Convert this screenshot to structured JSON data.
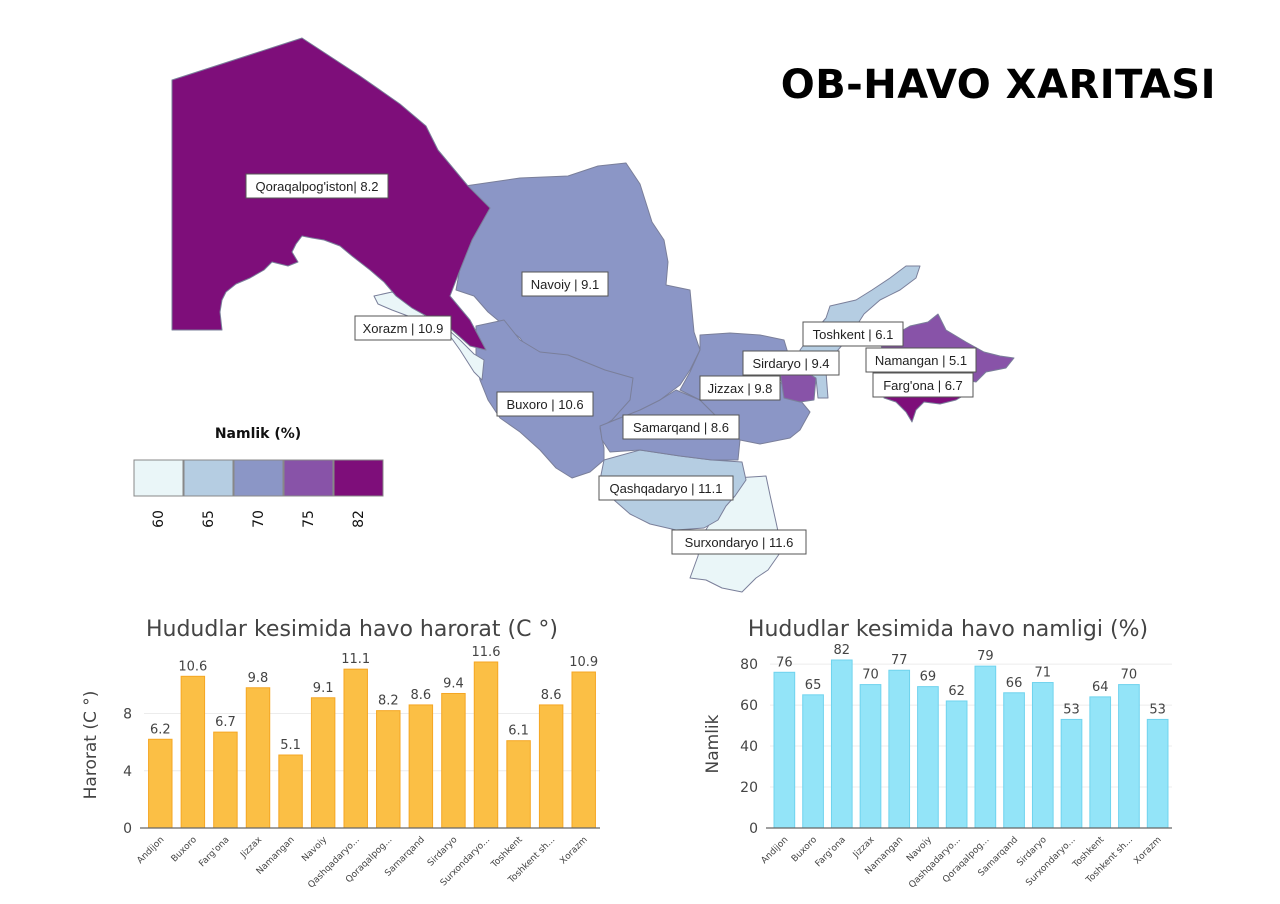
{
  "header": {
    "title": "OB-HAVO XARITASI"
  },
  "colors": {
    "scale": [
      "#eaf6f8",
      "#b5cde2",
      "#8b96c6",
      "#8853a8",
      "#7e0e7a"
    ],
    "temp_bar": "#fbbf45",
    "temp_bar_stroke": "#f5a623",
    "hum_bar": "#93e4f8",
    "hum_bar_stroke": "#6fd3ee"
  },
  "map": {
    "legend_title": "Namlik (%)",
    "legend_values": [
      "60",
      "65",
      "70",
      "75",
      "82"
    ],
    "regions": [
      {
        "name": "Qoraqalpog'iston",
        "label": "Qoraqalpog'iston| 8.2",
        "humidity": 79
      },
      {
        "name": "Xorazm",
        "label": "Xorazm | 10.9",
        "humidity": 53
      },
      {
        "name": "Navoiy",
        "label": "Navoiy | 9.1",
        "humidity": 69
      },
      {
        "name": "Buxoro",
        "label": "Buxoro | 10.6",
        "humidity": 65
      },
      {
        "name": "Samarqand",
        "label": "Samarqand | 8.6",
        "humidity": 66
      },
      {
        "name": "Jizzax",
        "label": "Jizzax | 9.8",
        "humidity": 70
      },
      {
        "name": "Sirdaryo",
        "label": "Sirdaryo | 9.4",
        "humidity": 71
      },
      {
        "name": "Toshkent",
        "label": "Toshkent | 6.1",
        "humidity": 64
      },
      {
        "name": "Namangan",
        "label": "Namangan | 5.1",
        "humidity": 77
      },
      {
        "name": "Farg'ona",
        "label": "Farg'ona  | 6.7",
        "humidity": 82
      },
      {
        "name": "Qashqadaryo",
        "label": "Qashqadaryo | 11.1",
        "humidity": 62
      },
      {
        "name": "Surxondaryo",
        "label": "Surxondaryo | 11.6",
        "humidity": 53
      }
    ]
  },
  "chart_data": [
    {
      "type": "bar",
      "title": "Hududlar kesimida havo harorat (C °)",
      "xlabel": "",
      "ylabel": "Harorat (C °)",
      "ylim": [
        0,
        11.6
      ],
      "yticks": [
        0,
        4,
        8
      ],
      "grid": true,
      "categories": [
        "Andijon",
        "Buxoro",
        "Farg'ona",
        "Jizzax",
        "Namangan",
        "Navoiy",
        "Qashqadaryo...",
        "Qoraqalpog...",
        "Samarqand",
        "Sirdaryo",
        "Surxondaryo...",
        "Toshkent",
        "Toshkent sh...",
        "Xorazm"
      ],
      "values": [
        6.2,
        10.6,
        6.7,
        9.8,
        5.1,
        9.1,
        11.1,
        8.2,
        8.6,
        9.4,
        11.6,
        6.1,
        8.6,
        10.9
      ]
    },
    {
      "type": "bar",
      "title": "Hududlar kesimida havo namligi (%)",
      "xlabel": "",
      "ylabel": "Namlik",
      "ylim": [
        0,
        82
      ],
      "yticks": [
        0,
        20,
        40,
        60,
        80
      ],
      "grid": true,
      "categories": [
        "Andijon",
        "Buxoro",
        "Farg'ona",
        "Jizzax",
        "Namangan",
        "Navoiy",
        "Qashqadaryo...",
        "Qoraqalpog...",
        "Samarqand",
        "Sirdaryo",
        "Surxondaryo...",
        "Toshkent",
        "Toshkent sh...",
        "Xorazm"
      ],
      "values": [
        76,
        65,
        82,
        70,
        77,
        69,
        62,
        79,
        66,
        71,
        53,
        64,
        70,
        53
      ]
    }
  ]
}
